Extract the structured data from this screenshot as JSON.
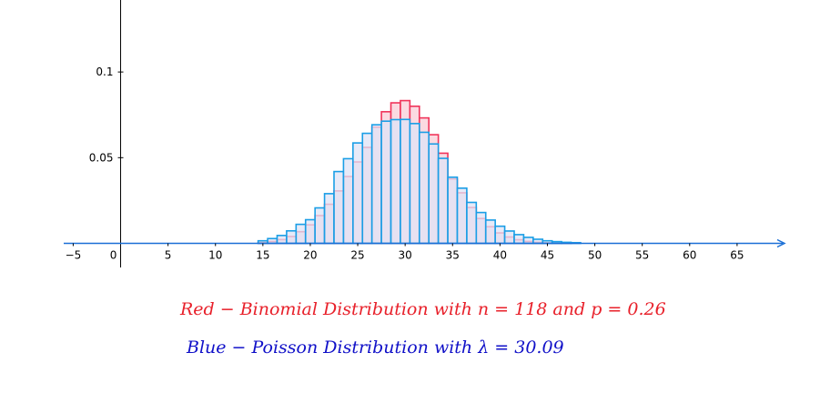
{
  "chart_data": {
    "type": "bar",
    "title": "",
    "xlabel": "",
    "ylabel": "",
    "xlim": [
      -6,
      70
    ],
    "ylim": [
      -0.013,
      0.142
    ],
    "x_ticks": [
      -5,
      0,
      5,
      10,
      15,
      20,
      25,
      30,
      35,
      40,
      45,
      50,
      55,
      60,
      65
    ],
    "x_tick_labels": [
      "−5",
      "0",
      "5",
      "10",
      "15",
      "20",
      "25",
      "30",
      "35",
      "40",
      "45",
      "50",
      "55",
      "60",
      "65"
    ],
    "y_ticks": [
      0.05,
      0.1
    ],
    "y_tick_labels": [
      "0.05",
      "0.1"
    ],
    "x": [
      15,
      16,
      17,
      18,
      19,
      20,
      21,
      22,
      23,
      24,
      25,
      26,
      27,
      28,
      29,
      30,
      31,
      32,
      33,
      34,
      35,
      36,
      37,
      38,
      39,
      40,
      41,
      42,
      43,
      44,
      45,
      46,
      47,
      48
    ],
    "series": [
      {
        "color": "#f0345a",
        "fill": "#fbd6de",
        "values": [
          0.0005,
          0.0011,
          0.0022,
          0.004,
          0.0068,
          0.0108,
          0.0162,
          0.0228,
          0.0306,
          0.039,
          0.0475,
          0.056,
          0.0678,
          0.0768,
          0.082,
          0.0833,
          0.08,
          0.0732,
          0.0634,
          0.0526,
          0.0376,
          0.0295,
          0.0209,
          0.0145,
          0.0097,
          0.0061,
          0.0037,
          0.0021,
          0.0011,
          0.0006,
          0.0003,
          0.0001,
          0.0001,
          0.0
        ]
      },
      {
        "color": "#1a9ee6",
        "fill": "#dfe3f5",
        "values": [
          0.0015,
          0.0028,
          0.0046,
          0.0073,
          0.0111,
          0.0138,
          0.0207,
          0.029,
          0.0419,
          0.0494,
          0.0586,
          0.0642,
          0.0692,
          0.0713,
          0.0722,
          0.0723,
          0.0699,
          0.0648,
          0.058,
          0.0496,
          0.0386,
          0.0322,
          0.0239,
          0.018,
          0.0136,
          0.01,
          0.0072,
          0.0051,
          0.0035,
          0.0024,
          0.0015,
          0.001,
          0.0006,
          0.0004
        ]
      }
    ],
    "grid": false,
    "legend": "none"
  },
  "captions": {
    "red": "Red − Binomial Distribution with n = 118 and p = 0.26",
    "blue": "Blue − Poisson Distribution with λ = 30.09"
  },
  "colors": {
    "axis": "#000000",
    "x_axis_arrow": "#1a6fd6",
    "caption_red": "#e8202a",
    "caption_blue": "#1010c8"
  }
}
